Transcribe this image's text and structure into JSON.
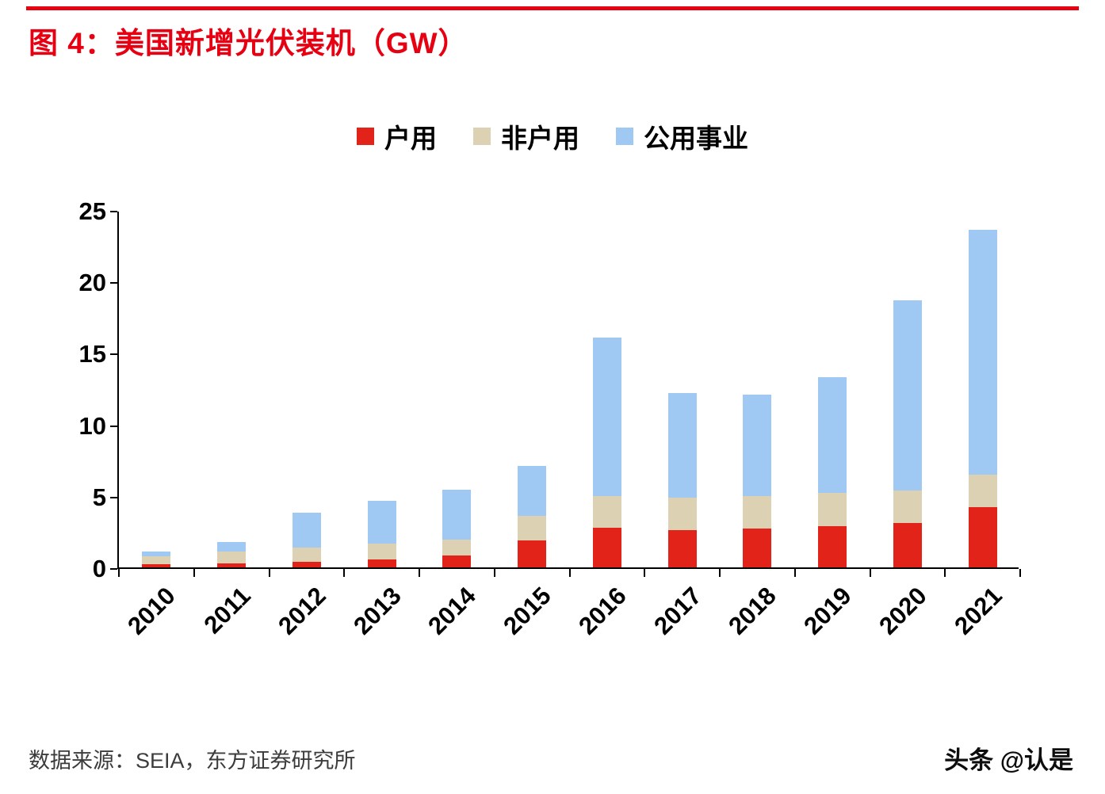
{
  "page": {
    "background": "#ffffff",
    "top_rule_color": "#e60012"
  },
  "header": {
    "title": "图 4：美国新增光伏装机（GW）",
    "title_color": "#e60012"
  },
  "legend": [
    {
      "label": "户用",
      "color": "#e2231a"
    },
    {
      "label": "非户用",
      "color": "#ddd1b4"
    },
    {
      "label": "公用事业",
      "color": "#9fc8f3"
    }
  ],
  "chart_data": {
    "type": "bar",
    "stacked": true,
    "title": "美国新增光伏装机（GW）",
    "xlabel": "",
    "ylabel": "",
    "ylim": [
      0,
      25
    ],
    "yticks": [
      0,
      5,
      10,
      15,
      20,
      25
    ],
    "grid": false,
    "legend_position": "top",
    "categories": [
      "2010",
      "2011",
      "2012",
      "2013",
      "2014",
      "2015",
      "2016",
      "2017",
      "2018",
      "2019",
      "2020",
      "2021"
    ],
    "series": [
      {
        "name": "户用",
        "color": "#e2231a",
        "values": [
          0.25,
          0.3,
          0.4,
          0.55,
          0.85,
          1.9,
          2.8,
          2.6,
          2.7,
          2.9,
          3.1,
          4.2
        ]
      },
      {
        "name": "非户用",
        "color": "#ddd1b4",
        "values": [
          0.55,
          0.8,
          1.0,
          1.1,
          1.1,
          1.7,
          2.2,
          2.3,
          2.3,
          2.3,
          2.3,
          2.3
        ]
      },
      {
        "name": "公用事业",
        "color": "#9fc8f3",
        "values": [
          0.3,
          0.7,
          2.4,
          3.0,
          3.5,
          3.5,
          11.1,
          7.3,
          7.1,
          8.1,
          13.3,
          17.1
        ]
      }
    ],
    "totals": [
      1.1,
      1.8,
      3.8,
      4.65,
      5.45,
      7.1,
      16.1,
      12.2,
      12.1,
      13.3,
      18.7,
      23.6
    ]
  },
  "footer": {
    "source": "数据来源：SEIA，东方证券研究所",
    "watermark": "头条 @认是"
  }
}
